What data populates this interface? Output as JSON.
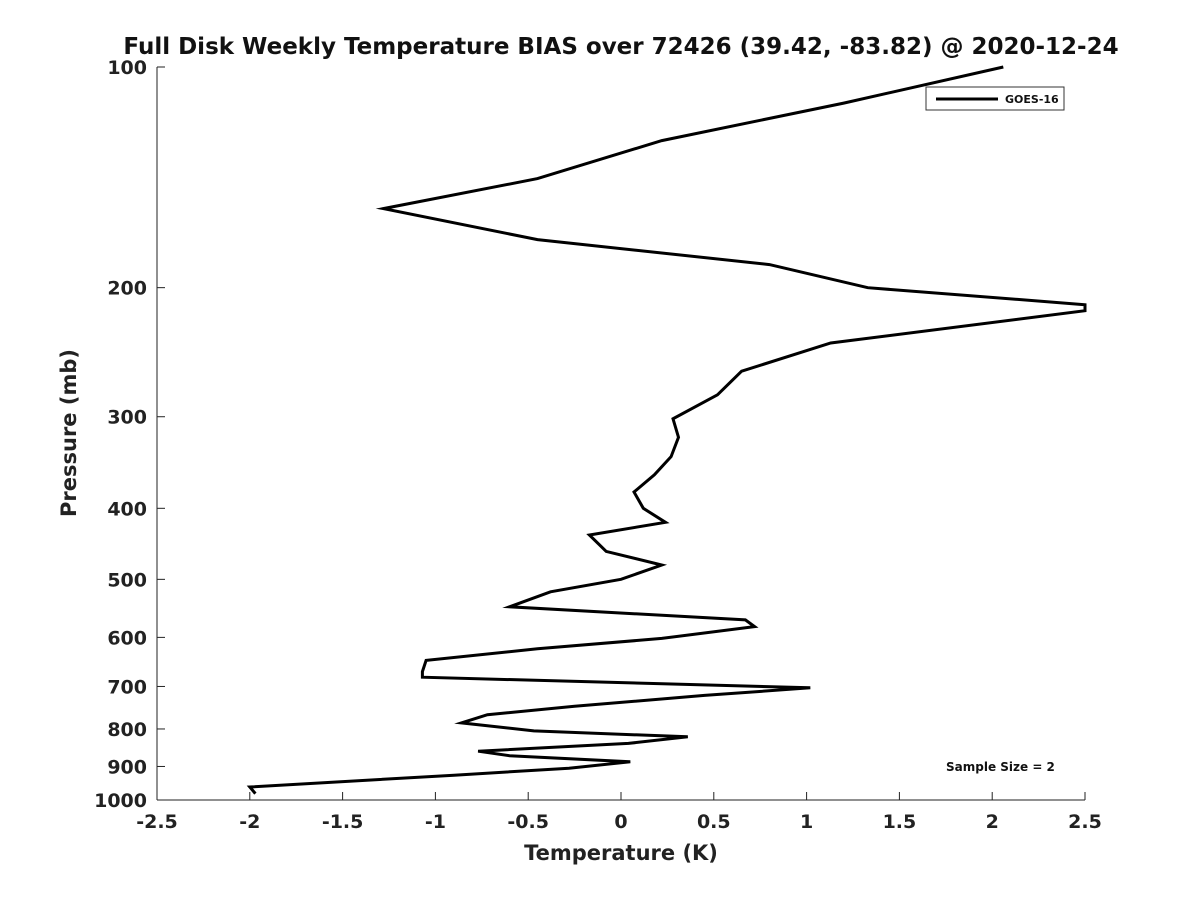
{
  "chart_data": {
    "type": "line",
    "title": "Full Disk Weekly Temperature BIAS over 72426 (39.42, -83.82) @ 2020-12-24",
    "xlabel": "Temperature (K)",
    "ylabel": "Pressure (mb)",
    "xlim": [
      -2.5,
      2.5
    ],
    "ylim": [
      1000,
      100
    ],
    "yscale": "log",
    "x_ticks": [
      -2.5,
      -2,
      -1.5,
      -1,
      -0.5,
      0,
      0.5,
      1,
      1.5,
      2,
      2.5
    ],
    "x_tick_labels": [
      "-2.5",
      "-2",
      "-1.5",
      "-1",
      "-0.5",
      "0",
      "0.5",
      "1",
      "1.5",
      "2",
      "2.5"
    ],
    "y_ticks": [
      100,
      200,
      300,
      400,
      500,
      600,
      700,
      800,
      900,
      1000
    ],
    "y_tick_labels": [
      "100",
      "200",
      "300",
      "400",
      "500",
      "600",
      "700",
      "800",
      "900",
      "1000"
    ],
    "grid": false,
    "legend": {
      "position": "top-right",
      "entries": [
        "GOES-16"
      ]
    },
    "annotation": "Sample Size = 2",
    "series": [
      {
        "name": "GOES-16",
        "color": "#000000",
        "x": [
          2.06,
          1.2,
          0.22,
          -0.45,
          -1.28,
          -0.45,
          0.8,
          1.33,
          2.5,
          2.5,
          1.13,
          0.65,
          0.52,
          0.28,
          0.31,
          0.27,
          0.18,
          0.07,
          0.12,
          0.24,
          -0.17,
          -0.08,
          0.22,
          0.0,
          -0.38,
          -0.6,
          0.67,
          0.72,
          0.22,
          -0.45,
          -1.05,
          -1.07,
          -1.07,
          1.02,
          0.45,
          -0.25,
          -0.72,
          -0.86,
          -0.47,
          0.36,
          0.04,
          -0.77,
          -0.6,
          0.05,
          -0.28,
          -0.9,
          -2.0,
          -1.97
        ],
        "y": [
          100,
          112,
          126,
          142,
          156,
          172,
          186,
          200,
          211,
          215,
          238,
          260,
          280,
          302,
          320,
          340,
          360,
          380,
          400,
          418,
          435,
          458,
          478,
          500,
          520,
          545,
          568,
          580,
          602,
          622,
          645,
          668,
          680,
          703,
          720,
          745,
          765,
          785,
          805,
          820,
          837,
          858,
          870,
          887,
          905,
          925,
          960,
          980
        ]
      }
    ]
  }
}
